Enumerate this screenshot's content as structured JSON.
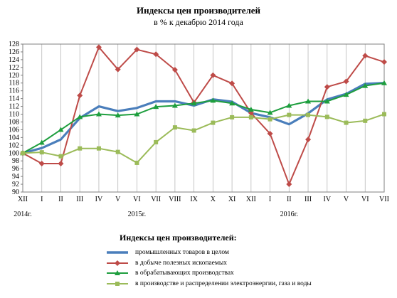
{
  "chart_data": {
    "type": "line",
    "title": "Индексы цен производителей",
    "subtitle": "в % к декабрю 2014 года",
    "categories": [
      "XII",
      "I",
      "II",
      "III",
      "IV",
      "V",
      "VI",
      "VII",
      "VIII",
      "IX",
      "X",
      "XI",
      "XII",
      "I",
      "II",
      "III",
      "IV",
      "V",
      "VI",
      "VII"
    ],
    "year_labels": [
      {
        "text": "2014г.",
        "category_index": 0
      },
      {
        "text": "2015г.",
        "category_index": 6
      },
      {
        "text": "2016г.",
        "category_index": 14
      }
    ],
    "ylim": [
      90,
      128
    ],
    "yticks": [
      90,
      92,
      94,
      96,
      98,
      100,
      102,
      104,
      106,
      108,
      110,
      112,
      114,
      116,
      118,
      120,
      122,
      124,
      126,
      128
    ],
    "grid": true,
    "legend_title": "Индексы цен производителей:",
    "legend_position": "bottom",
    "series": [
      {
        "name": "промышленных товаров в целом",
        "color": "#4a7ebb",
        "marker": "none",
        "values": [
          100,
          101.3,
          103.5,
          109,
          112,
          110.8,
          111.6,
          113.3,
          113.3,
          112.2,
          113.8,
          113.2,
          110.3,
          109.2,
          107.4,
          110.2,
          113.8,
          115.2,
          117.8,
          118
        ]
      },
      {
        "name": "в добыче полезных ископаемых",
        "color": "#be4b48",
        "marker": "diamond",
        "values": [
          100,
          97.3,
          97.3,
          114.8,
          127.2,
          121.5,
          126.6,
          125.4,
          121.4,
          113,
          120,
          117.9,
          110.3,
          105,
          92,
          103.5,
          117,
          118.4,
          125,
          123.4
        ]
      },
      {
        "name": "в обрабатывающих производствах",
        "color": "#1e9e3e",
        "marker": "triangle",
        "values": [
          100,
          102.7,
          106,
          109.3,
          110,
          109.7,
          110,
          111.9,
          112.2,
          112.8,
          113.5,
          112.8,
          111.2,
          110.4,
          112.2,
          113.3,
          113.3,
          115,
          117.3,
          118
        ]
      },
      {
        "name": "в производстве и распределении электроэнергии, газа и воды",
        "color": "#9bbb59",
        "marker": "square",
        "values": [
          100,
          100.2,
          99.2,
          101.2,
          101.2,
          100.3,
          97.5,
          102.8,
          106.6,
          105.8,
          107.8,
          109.2,
          109.2,
          108.7,
          109.8,
          109.8,
          109.3,
          107.8,
          108.3,
          110
        ]
      }
    ]
  }
}
